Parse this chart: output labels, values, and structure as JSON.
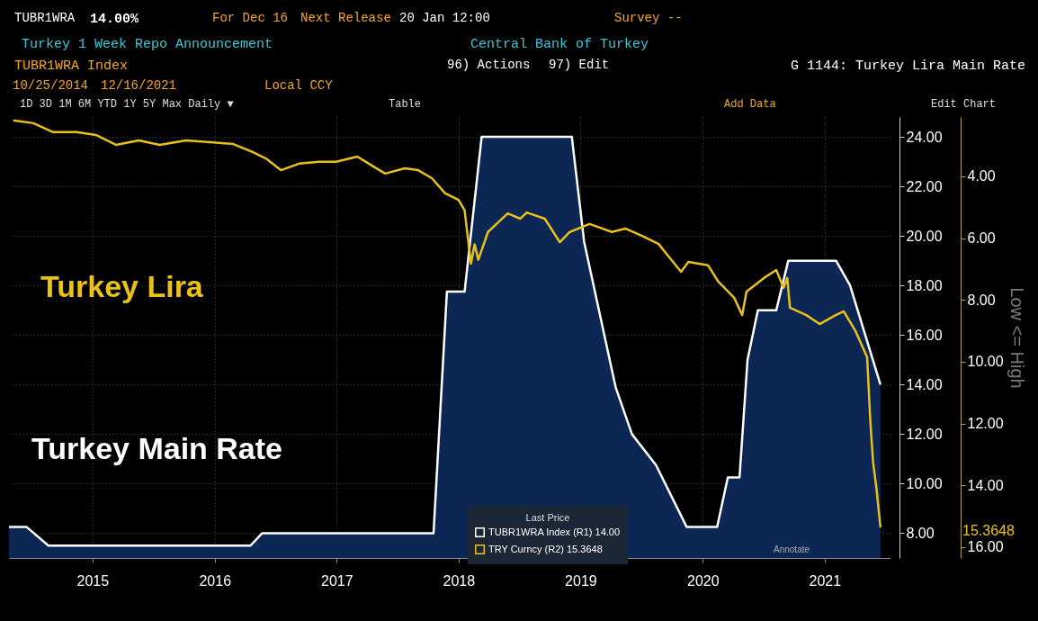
{
  "chart_data": {
    "type": "line",
    "title": "Turkey 1 Week Repo Announcement",
    "subtitle": "Central Bank of Turkey",
    "legend_title": "Last Price",
    "y2label": "Low <= High",
    "annotations": [
      "TUBR1WRA",
      "14.00%",
      "For Dec 16",
      "Next Release",
      "20 Jan 12:00",
      "Survey --",
      "TUBR1WRA Index",
      "96) Actions",
      "97) Edit",
      "G 1144: Turkey Lira Main Rate",
      "10/25/2014",
      "12/16/2021",
      "Local CCY",
      "1D  3D  1M  6M  YTD  1Y  5Y  Max  Daily ▼",
      "Table",
      "Add Data",
      "Edit Chart",
      "Turkey Lira",
      "Turkey Main Rate",
      "Annotate",
      "15.3648"
    ],
    "xlim": [
      "2014-10-25",
      "2022-01-15"
    ],
    "xticks": [
      {
        "value": "2015-07-02",
        "label": "2015"
      },
      {
        "value": "2016-07-02",
        "label": "2016"
      },
      {
        "value": "2017-07-02",
        "label": "2017"
      },
      {
        "value": "2018-07-02",
        "label": "2018"
      },
      {
        "value": "2019-07-02",
        "label": "2019"
      },
      {
        "value": "2020-07-02",
        "label": "2020"
      },
      {
        "value": "2021-07-02",
        "label": "2021"
      }
    ],
    "ylim": [
      7.0,
      24.8
    ],
    "yticks": [
      {
        "value": 8,
        "label": "8.00"
      },
      {
        "value": 10,
        "label": "10.00"
      },
      {
        "value": 12,
        "label": "12.00"
      },
      {
        "value": 14,
        "label": "14.00"
      },
      {
        "value": 16,
        "label": "16.00"
      },
      {
        "value": 18,
        "label": "18.00"
      },
      {
        "value": 20,
        "label": "20.00"
      },
      {
        "value": 22,
        "label": "22.00"
      },
      {
        "value": 24,
        "label": "24.00"
      }
    ],
    "y2lim": [
      16.35,
      2.08
    ],
    "y2ticks": [
      {
        "value": 4,
        "label": "4.00"
      },
      {
        "value": 6,
        "label": "6.00"
      },
      {
        "value": 8,
        "label": "8.00"
      },
      {
        "value": 10,
        "label": "10.00"
      },
      {
        "value": 12,
        "label": "12.00"
      },
      {
        "value": 14,
        "label": "14.00"
      },
      {
        "value": 16,
        "label": "16.00"
      }
    ],
    "grid": true,
    "legend": "bottom",
    "series": [
      {
        "name": "TUBR1WRA Index (R1) 14.00",
        "type": "area",
        "color": "#ffffff",
        "x": [
          "2014-10-25",
          "2014-12-17",
          "2015-02-20",
          "2016-10-17",
          "2016-11-21",
          "2018-04-18",
          "2018-05-28",
          "2018-07-20",
          "2018-09-09",
          "2019-06-06",
          "2019-07-13",
          "2019-10-15",
          "2019-12-03",
          "2020-02-13",
          "2020-05-15",
          "2020-08-14",
          "2020-09-15",
          "2020-10-20",
          "2020-11-13",
          "2020-12-14",
          "2021-02-07",
          "2021-03-15",
          "2021-08-05",
          "2021-09-16",
          "2021-12-16"
        ],
        "values": [
          8.25,
          8.25,
          7.5,
          7.5,
          8.0,
          8.0,
          17.75,
          17.75,
          24.0,
          24.0,
          19.75,
          13.9,
          12.0,
          10.75,
          8.25,
          8.25,
          10.25,
          10.25,
          15.0,
          17.0,
          17.0,
          19.0,
          19.0,
          18.0,
          14.0
        ]
      },
      {
        "name": "TRY Curncy (R2) 15.3648",
        "axis": "y2",
        "color": "#e8c21a",
        "x": [
          "2014-11-07",
          "2015-01-06",
          "2015-03-06",
          "2015-05-15",
          "2015-07-12",
          "2015-09-10",
          "2015-11-18",
          "2016-01-19",
          "2016-04-07",
          "2016-06-27",
          "2016-08-25",
          "2016-10-23",
          "2016-12-02",
          "2017-01-16",
          "2017-03-11",
          "2017-05-10",
          "2017-06-30",
          "2017-09-02",
          "2017-10-15",
          "2017-11-24",
          "2018-01-22",
          "2018-03-03",
          "2018-04-13",
          "2018-05-23",
          "2018-07-02",
          "2018-07-20",
          "2018-08-08",
          "2018-08-19",
          "2018-08-30",
          "2018-09-28",
          "2018-11-26",
          "2019-01-03",
          "2019-01-22",
          "2019-03-17",
          "2019-05-01",
          "2019-05-31",
          "2019-07-29",
          "2019-10-04",
          "2019-11-13",
          "2020-01-01",
          "2020-02-21",
          "2020-03-11",
          "2020-04-28",
          "2020-05-20",
          "2020-07-18",
          "2020-08-17",
          "2020-10-04",
          "2020-10-28",
          "2020-11-10",
          "2021-01-01",
          "2021-02-07",
          "2021-03-01",
          "2021-03-12",
          "2021-03-20",
          "2021-05-08",
          "2021-06-17",
          "2021-08-04",
          "2021-08-28",
          "2021-10-02",
          "2021-11-06",
          "2021-11-16",
          "2021-11-24",
          "2021-12-04",
          "2021-12-16"
        ],
        "values": [
          2.19,
          2.28,
          2.57,
          2.57,
          2.66,
          2.98,
          2.84,
          2.98,
          2.84,
          2.9,
          2.95,
          3.21,
          3.42,
          3.8,
          3.59,
          3.53,
          3.53,
          3.36,
          3.65,
          3.91,
          3.74,
          3.8,
          4.06,
          4.55,
          4.76,
          5.1,
          6.83,
          6.2,
          6.7,
          5.8,
          5.2,
          5.37,
          5.17,
          5.37,
          6.13,
          5.8,
          5.54,
          5.8,
          5.69,
          5.92,
          6.19,
          6.45,
          7.09,
          6.77,
          6.88,
          7.4,
          7.93,
          8.49,
          7.73,
          7.29,
          7.03,
          7.61,
          7.29,
          8.25,
          8.49,
          8.78,
          8.49,
          8.37,
          9.0,
          9.85,
          11.98,
          13.26,
          14.1,
          15.3648
        ]
      }
    ]
  }
}
